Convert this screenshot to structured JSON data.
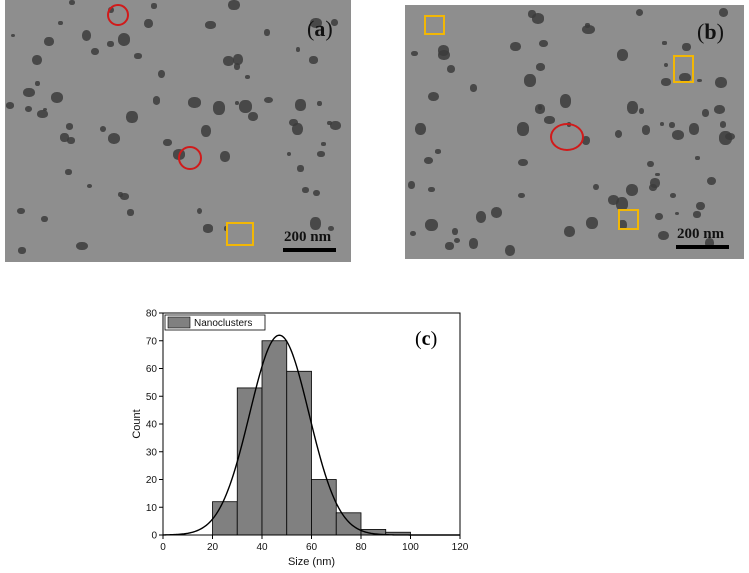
{
  "figure": {
    "panel_a": {
      "label": "a",
      "scale_label": "200 nm"
    },
    "panel_b": {
      "label": "b",
      "scale_label": "200 nm"
    },
    "panel_c": {
      "label": "c"
    },
    "colors": {
      "micrograph_bg": "#8e8e8e",
      "particle": "#3c3c3c",
      "circle_marker": "#d11a1a",
      "square_marker": "#f2b705",
      "bar": "#808080"
    }
  },
  "chart_data": {
    "type": "bar",
    "title": "",
    "xlabel": "Size (nm)",
    "ylabel": "Count",
    "xlim": [
      0,
      120
    ],
    "ylim": [
      0,
      80
    ],
    "xticks": [
      0,
      20,
      40,
      60,
      80,
      100,
      120
    ],
    "yticks": [
      0,
      10,
      20,
      30,
      40,
      50,
      60,
      70,
      80
    ],
    "bin_width": 10,
    "series": [
      {
        "name": "Nanoclusters",
        "bins": [
          20,
          30,
          40,
          50,
          60,
          70,
          80,
          90
        ],
        "values": [
          12,
          53,
          70,
          59,
          20,
          8,
          2,
          1
        ]
      }
    ],
    "fit": {
      "type": "gaussian",
      "mean": 47,
      "sigma": 12,
      "peak": 72
    },
    "legend": "top-left"
  }
}
